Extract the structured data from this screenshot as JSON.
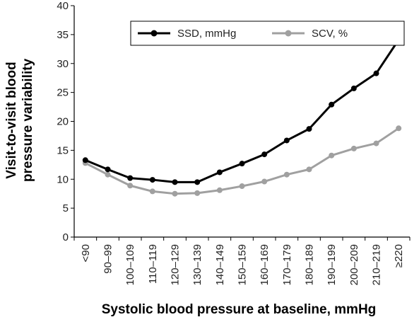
{
  "chart_data": {
    "type": "line",
    "categories": [
      "<90",
      "90–99",
      "100–109",
      "110–119",
      "120–129",
      "130–139",
      "140–149",
      "150–159",
      "160–169",
      "170–179",
      "180–189",
      "190–199",
      "200–209",
      "210–219",
      "≥220"
    ],
    "series": [
      {
        "name": "SSD, mmHg",
        "color": "#000000",
        "values": [
          13.3,
          11.7,
          10.2,
          9.9,
          9.5,
          9.5,
          11.2,
          12.7,
          14.3,
          16.7,
          18.7,
          22.9,
          25.7,
          28.3,
          34.1
        ]
      },
      {
        "name": "SCV, %",
        "color": "#a0a0a0",
        "values": [
          12.8,
          10.8,
          8.9,
          7.9,
          7.5,
          7.6,
          8.1,
          8.8,
          9.6,
          10.8,
          11.7,
          14.1,
          15.3,
          16.2,
          18.8
        ]
      }
    ],
    "ylabel_lines": [
      "Visit-to-visit blood",
      "pressure variability"
    ],
    "xlabel": "Systolic blood pressure at baseline, mmHg",
    "ylim": [
      0,
      40
    ],
    "yticks": [
      0,
      5,
      10,
      15,
      20,
      25,
      30,
      35,
      40
    ],
    "grid": false,
    "legend_position": "top-right"
  }
}
